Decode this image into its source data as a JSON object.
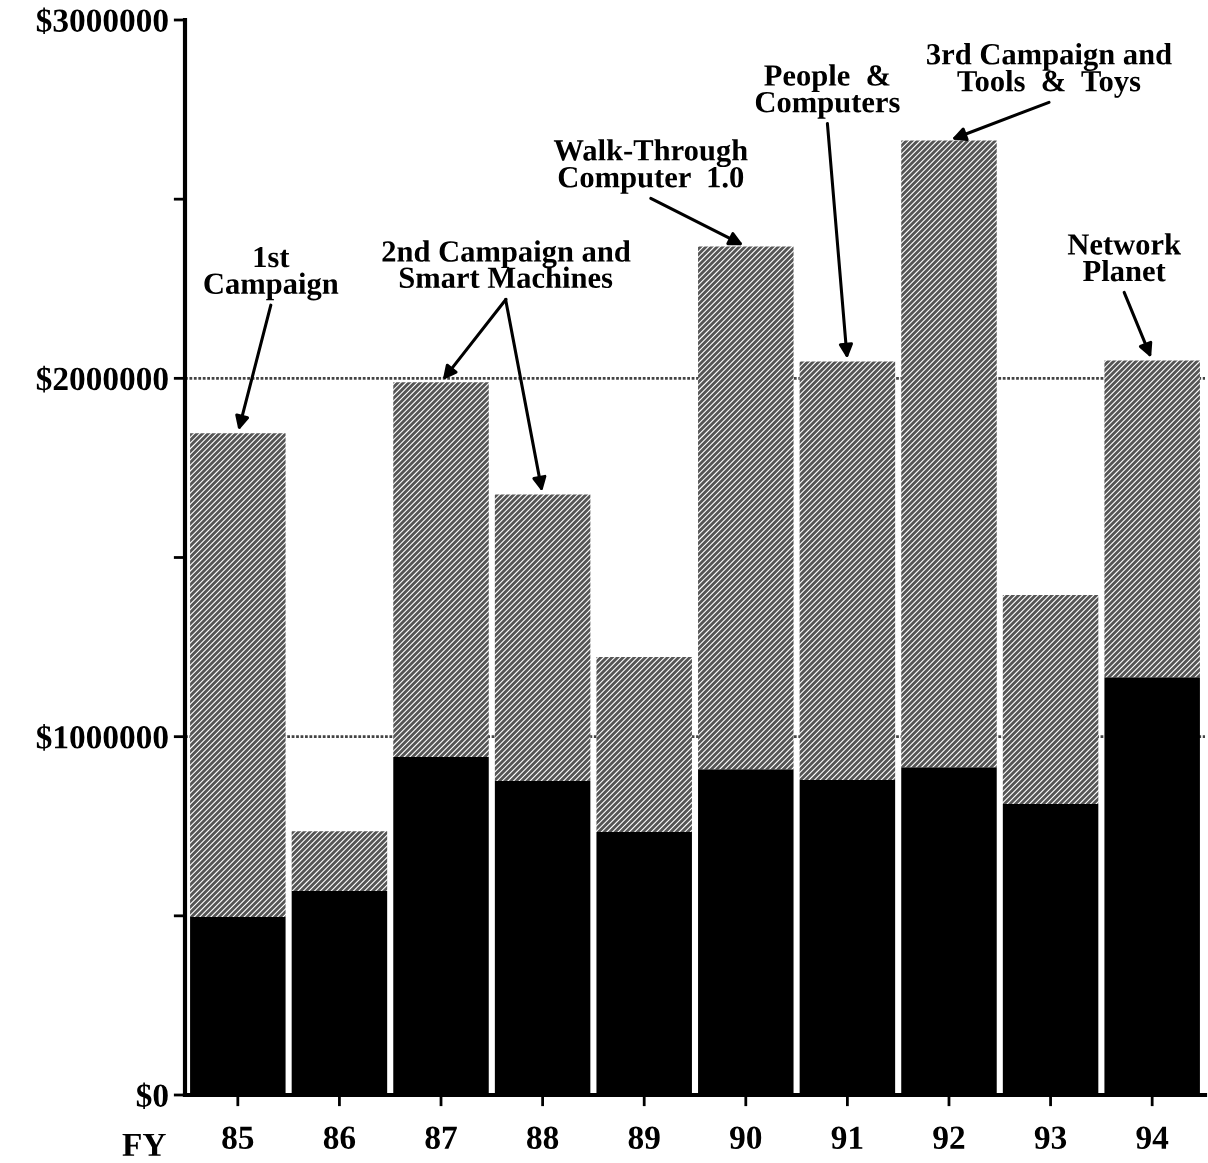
{
  "chart_data": {
    "type": "bar",
    "stacked": true,
    "xlabel": "FY",
    "categories": [
      "85",
      "86",
      "87",
      "88",
      "89",
      "90",
      "91",
      "92",
      "93",
      "94"
    ],
    "series": [
      {
        "color": "#000000",
        "values": [
          497000,
          569000,
          943000,
          876000,
          734000,
          909000,
          879000,
          915000,
          812000,
          1166000
        ]
      },
      {
        "color": "#555555",
        "values": [
          1350000,
          167000,
          1046000,
          800000,
          488000,
          1459000,
          1168000,
          1749000,
          583000,
          884000
        ]
      }
    ],
    "ylim": [
      0,
      3000000
    ],
    "yticks": [
      {
        "value": 0,
        "label": "$0"
      },
      {
        "value": 500000,
        "label": null
      },
      {
        "value": 1000000,
        "label": "$1000000"
      },
      {
        "value": 1500000,
        "label": null
      },
      {
        "value": 2000000,
        "label": "$2000000"
      },
      {
        "value": 2500000,
        "label": null
      },
      {
        "value": 3000000,
        "label": "$3000000"
      }
    ],
    "grid": "y",
    "legend": false,
    "annotations": [
      {
        "text": "1st\nCampaign",
        "x": "85",
        "y": 1847000
      },
      {
        "text": "2nd Campaign and",
        "x": "87",
        "y": 1989000
      },
      {
        "text": "Smart Machines",
        "x": "88",
        "y": 1676000
      },
      {
        "text": "Walk-Through\nComputer  1.0",
        "x": "90",
        "y": 2368000
      },
      {
        "text": "People  &\nComputers",
        "x": "91",
        "y": 2047000
      },
      {
        "text": "3rd Campaign and\nTools  &  Toys",
        "x": "92",
        "y": 2664000
      },
      {
        "text": "Network\nPlanet",
        "x": "94",
        "y": 2050000
      }
    ]
  }
}
